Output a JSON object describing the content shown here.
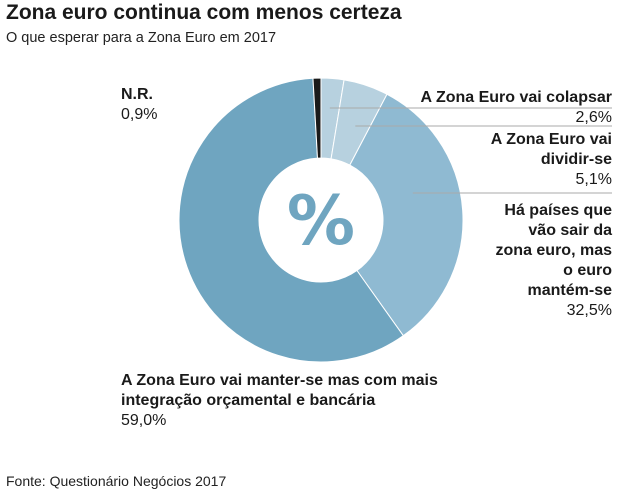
{
  "title": "Zona euro continua com menos certeza",
  "subtitle": "O que esperar para a Zona Euro em 2017",
  "center_symbol": "%",
  "source": "Fonte: Questionário Negócios 2017",
  "chart_data": {
    "type": "pie",
    "style": "donut",
    "slices": [
      {
        "label": "A Zona Euro vai colapsar",
        "value": 2.6,
        "display": "2,6%",
        "color": "#b7d1df"
      },
      {
        "label": "A Zona Euro vai dividir-se",
        "value": 5.1,
        "display": "5,1%",
        "color": "#b7d1df"
      },
      {
        "label": "Há países que vão sair da zona euro, mas o euro mantém-se",
        "value": 32.5,
        "display": "32,5%",
        "color": "#8fbad2"
      },
      {
        "label": "A Zona Euro vai manter-se mas com mais integração orçamental e bancária",
        "value": 59.0,
        "display": "59,0%",
        "color": "#6fa5c0"
      },
      {
        "label": "N.R.",
        "value": 0.9,
        "display": "0,9%",
        "color": "#1a1a1a"
      }
    ],
    "leader_line_color": "#aaaaaa"
  }
}
